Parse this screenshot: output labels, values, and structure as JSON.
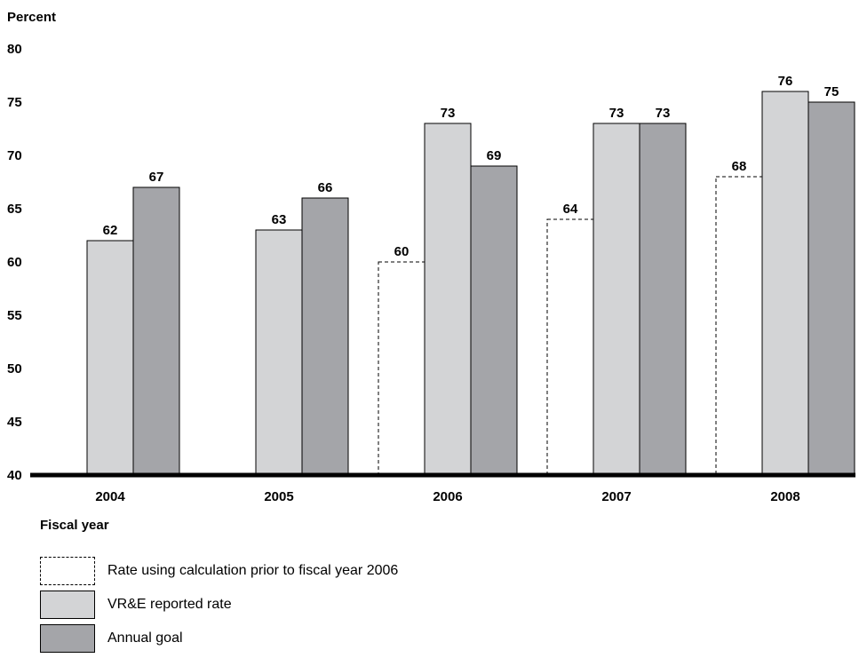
{
  "chart_data": {
    "type": "bar",
    "ylabel": "Percent",
    "xlabel": "Fiscal year",
    "ylim": [
      40,
      80
    ],
    "yticks": [
      40,
      45,
      50,
      55,
      60,
      65,
      70,
      75,
      80
    ],
    "categories": [
      "2004",
      "2005",
      "2006",
      "2007",
      "2008"
    ],
    "series": [
      {
        "name": "Rate using calculation prior to fiscal year 2006",
        "style": "dashed-outline",
        "color": "#ffffff",
        "values": [
          null,
          null,
          60,
          64,
          68
        ]
      },
      {
        "name": "VR&E reported rate",
        "style": "solid",
        "color": "#d3d4d6",
        "values": [
          62,
          63,
          73,
          73,
          76
        ]
      },
      {
        "name": "Annual goal",
        "style": "solid",
        "color": "#a4a5a9",
        "values": [
          67,
          66,
          69,
          73,
          75
        ]
      }
    ],
    "grid": false,
    "legend_position": "bottom-left"
  }
}
